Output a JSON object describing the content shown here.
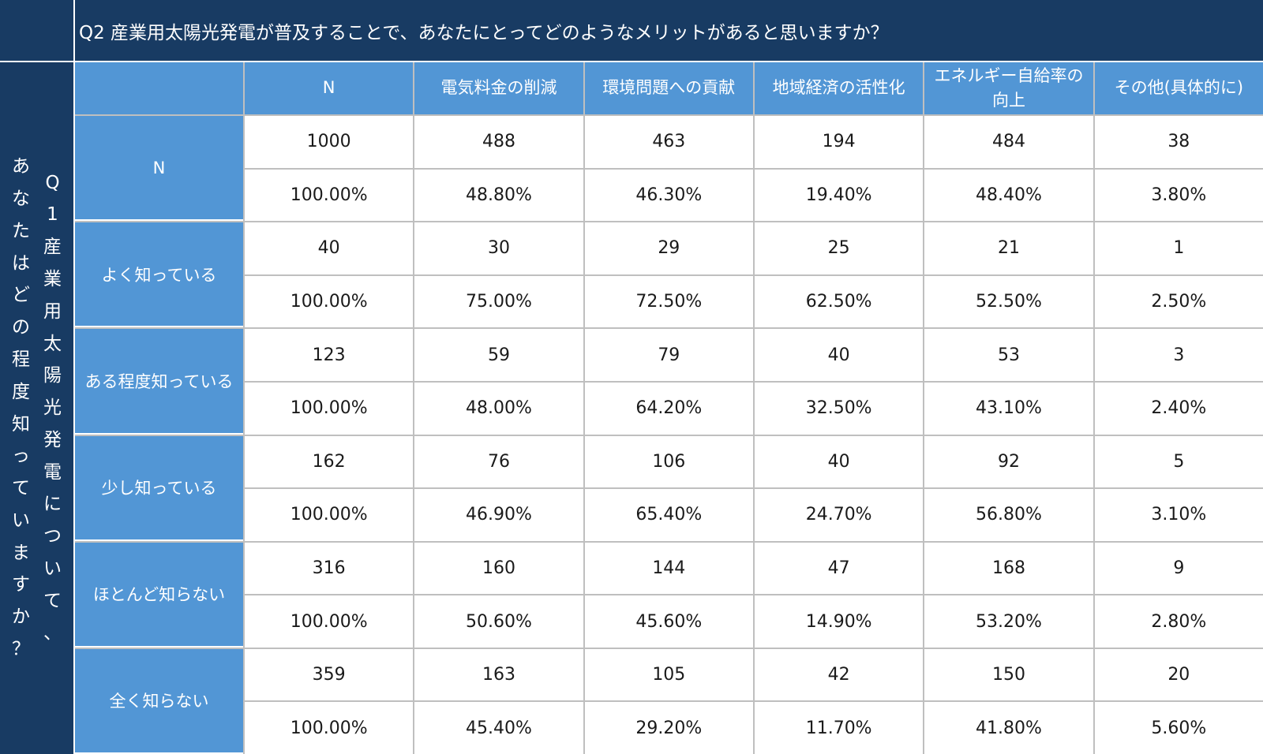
{
  "chart_data": {
    "type": "table",
    "title": "Q2 産業用太陽光発電が普及することで、あなたにとってどのようなメリットがあると思いますか？",
    "row_axis_title": "Q1 産業用太陽光発電について、あなたはどの程度知っていますか？",
    "row_axis_title_columns": [
      "Q1産業用太陽光発電について、",
      "あなたはどの程度知っていますか？"
    ],
    "corner_label": "",
    "columns": [
      "N",
      "電気料金の削減",
      "環境問題への貢献",
      "地域経済の活性化",
      "エネルギー自給率の向上",
      "その他(具体的に)"
    ],
    "rows": [
      {
        "label": "N",
        "counts": [
          "1000",
          "488",
          "463",
          "194",
          "484",
          "38"
        ],
        "percents": [
          "100.00%",
          "48.80%",
          "46.30%",
          "19.40%",
          "48.40%",
          "3.80%"
        ]
      },
      {
        "label": "よく知っている",
        "counts": [
          "40",
          "30",
          "29",
          "25",
          "21",
          "1"
        ],
        "percents": [
          "100.00%",
          "75.00%",
          "72.50%",
          "62.50%",
          "52.50%",
          "2.50%"
        ]
      },
      {
        "label": "ある程度知っている",
        "counts": [
          "123",
          "59",
          "79",
          "40",
          "53",
          "3"
        ],
        "percents": [
          "100.00%",
          "48.00%",
          "64.20%",
          "32.50%",
          "43.10%",
          "2.40%"
        ]
      },
      {
        "label": "少し知っている",
        "counts": [
          "162",
          "76",
          "106",
          "40",
          "92",
          "5"
        ],
        "percents": [
          "100.00%",
          "46.90%",
          "65.40%",
          "24.70%",
          "56.80%",
          "3.10%"
        ]
      },
      {
        "label": "ほとんど知らない",
        "counts": [
          "316",
          "160",
          "144",
          "47",
          "168",
          "9"
        ],
        "percents": [
          "100.00%",
          "50.60%",
          "45.60%",
          "14.90%",
          "53.20%",
          "2.80%"
        ]
      },
      {
        "label": "全く知らない",
        "counts": [
          "359",
          "163",
          "105",
          "42",
          "150",
          "20"
        ],
        "percents": [
          "100.00%",
          "45.40%",
          "29.20%",
          "11.70%",
          "41.80%",
          "5.60%"
        ]
      }
    ]
  },
  "colors": {
    "title_background": "#183b63",
    "header_background": "#5296d5",
    "cell_background": "#ffffff",
    "grid_line": "#bfbfbf"
  }
}
